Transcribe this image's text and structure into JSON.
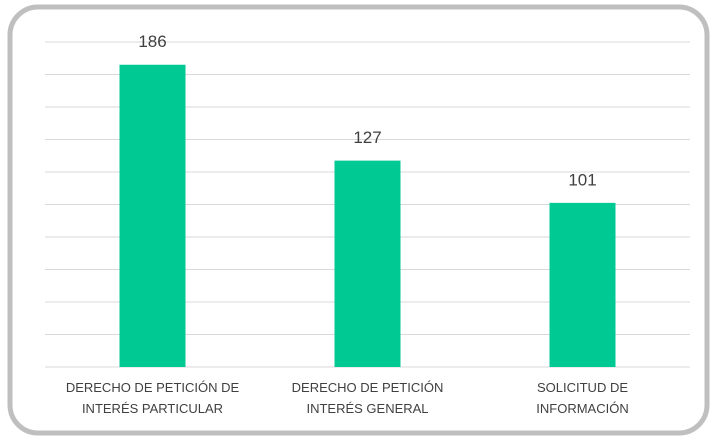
{
  "chart_data": {
    "type": "bar",
    "categories": [
      "DERECHO DE PETICIÓN DE\nINTERÉS PARTICULAR",
      "DERECHO DE PETICIÓN\nINTERÉS GENERAL",
      "SOLICITUD DE\nINFORMACIÓN"
    ],
    "values": [
      186,
      127,
      101
    ],
    "color": "#00c994",
    "ylim": [
      0,
      200
    ],
    "yticks": [
      0,
      20,
      40,
      60,
      80,
      100,
      120,
      140,
      160,
      180,
      200
    ],
    "grid": true
  }
}
